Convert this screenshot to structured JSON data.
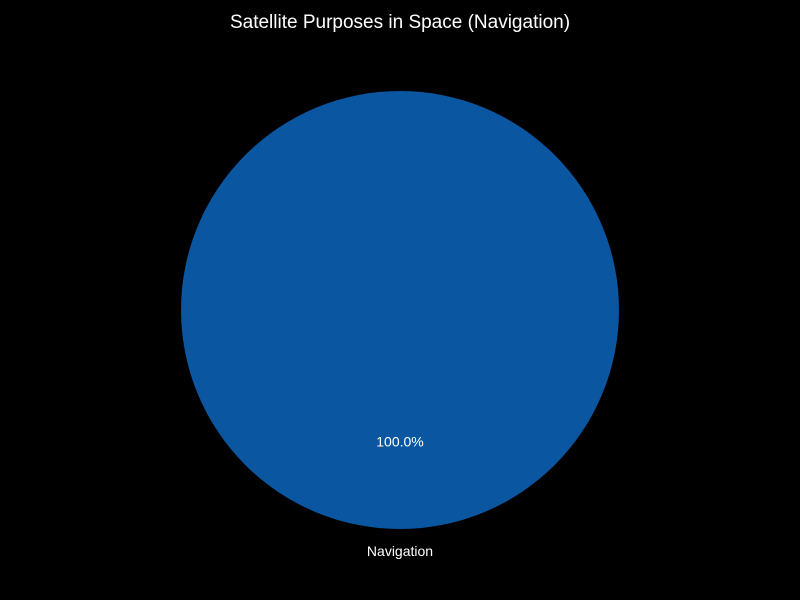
{
  "chart_data": {
    "type": "pie",
    "title": "Satellite Purposes in Space (Navigation)",
    "categories": [
      "Navigation"
    ],
    "values": [
      100
    ],
    "percent_labels": [
      "100.0%"
    ],
    "colors": [
      "#0a56a0"
    ],
    "background": "#000000",
    "text_color": "#ffffff",
    "legend": "none"
  }
}
